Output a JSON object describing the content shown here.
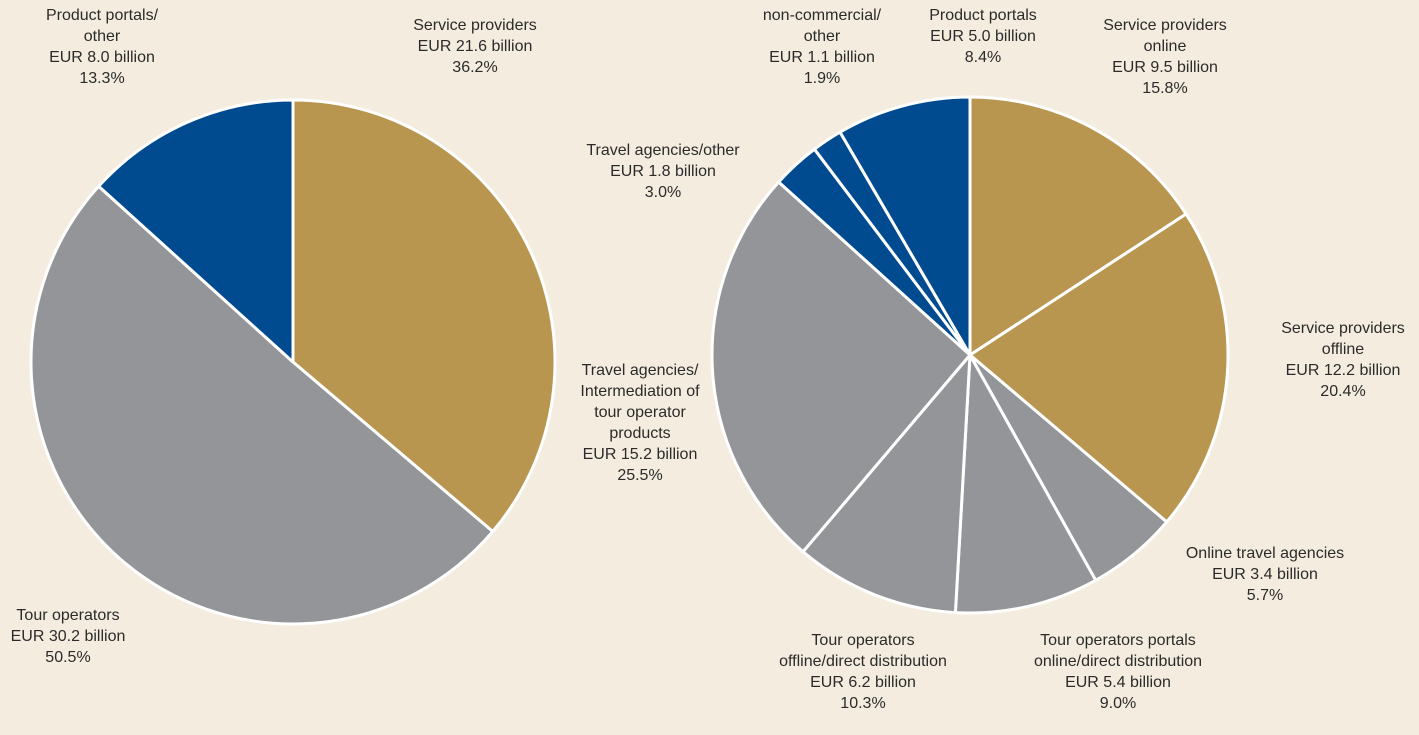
{
  "chart_data": [
    {
      "type": "pie",
      "categories": [
        "Service providers",
        "Tour operators",
        "Product portals/\nother"
      ],
      "values": [
        36.2,
        50.5,
        13.3
      ],
      "value_labels": [
        "36.2%",
        "50.5%",
        "13.3%"
      ],
      "amount_labels": [
        "EUR 21.6 billion",
        "EUR 30.2 billion",
        "EUR 8.0 billion"
      ],
      "colors": [
        "#b8964f",
        "#939598",
        "#004a8f"
      ]
    },
    {
      "type": "pie",
      "categories": [
        "Service providers\nonline",
        "Service providers\noffline",
        "Online travel agencies",
        "Tour operators portals\nonline/direct distribution",
        "Tour operators\noffline/direct distribution",
        "Travel agencies/\nIntermediation of\ntour operator\nproducts",
        "Travel agencies/other",
        "non-commercial/\nother",
        "Product portals"
      ],
      "values": [
        15.8,
        20.4,
        5.7,
        9.0,
        10.3,
        25.5,
        3.0,
        1.9,
        8.4
      ],
      "value_labels": [
        "15.8%",
        "20.4%",
        "5.7%",
        "9.0%",
        "10.3%",
        "25.5%",
        "3.0%",
        "1.9%",
        "8.4%"
      ],
      "amount_labels": [
        "EUR 9.5 billion",
        "EUR 12.2 billion",
        "EUR 3.4 billion",
        "EUR 5.4 billion",
        "EUR 6.2 billion",
        "EUR 15.2 billion",
        "EUR 1.8 billion",
        "EUR 1.1 billion",
        "EUR 5.0 billion"
      ],
      "colors": [
        "#b8964f",
        "#b8964f",
        "#939598",
        "#939598",
        "#939598",
        "#939598",
        "#004a8f",
        "#004a8f",
        "#004a8f"
      ]
    }
  ]
}
